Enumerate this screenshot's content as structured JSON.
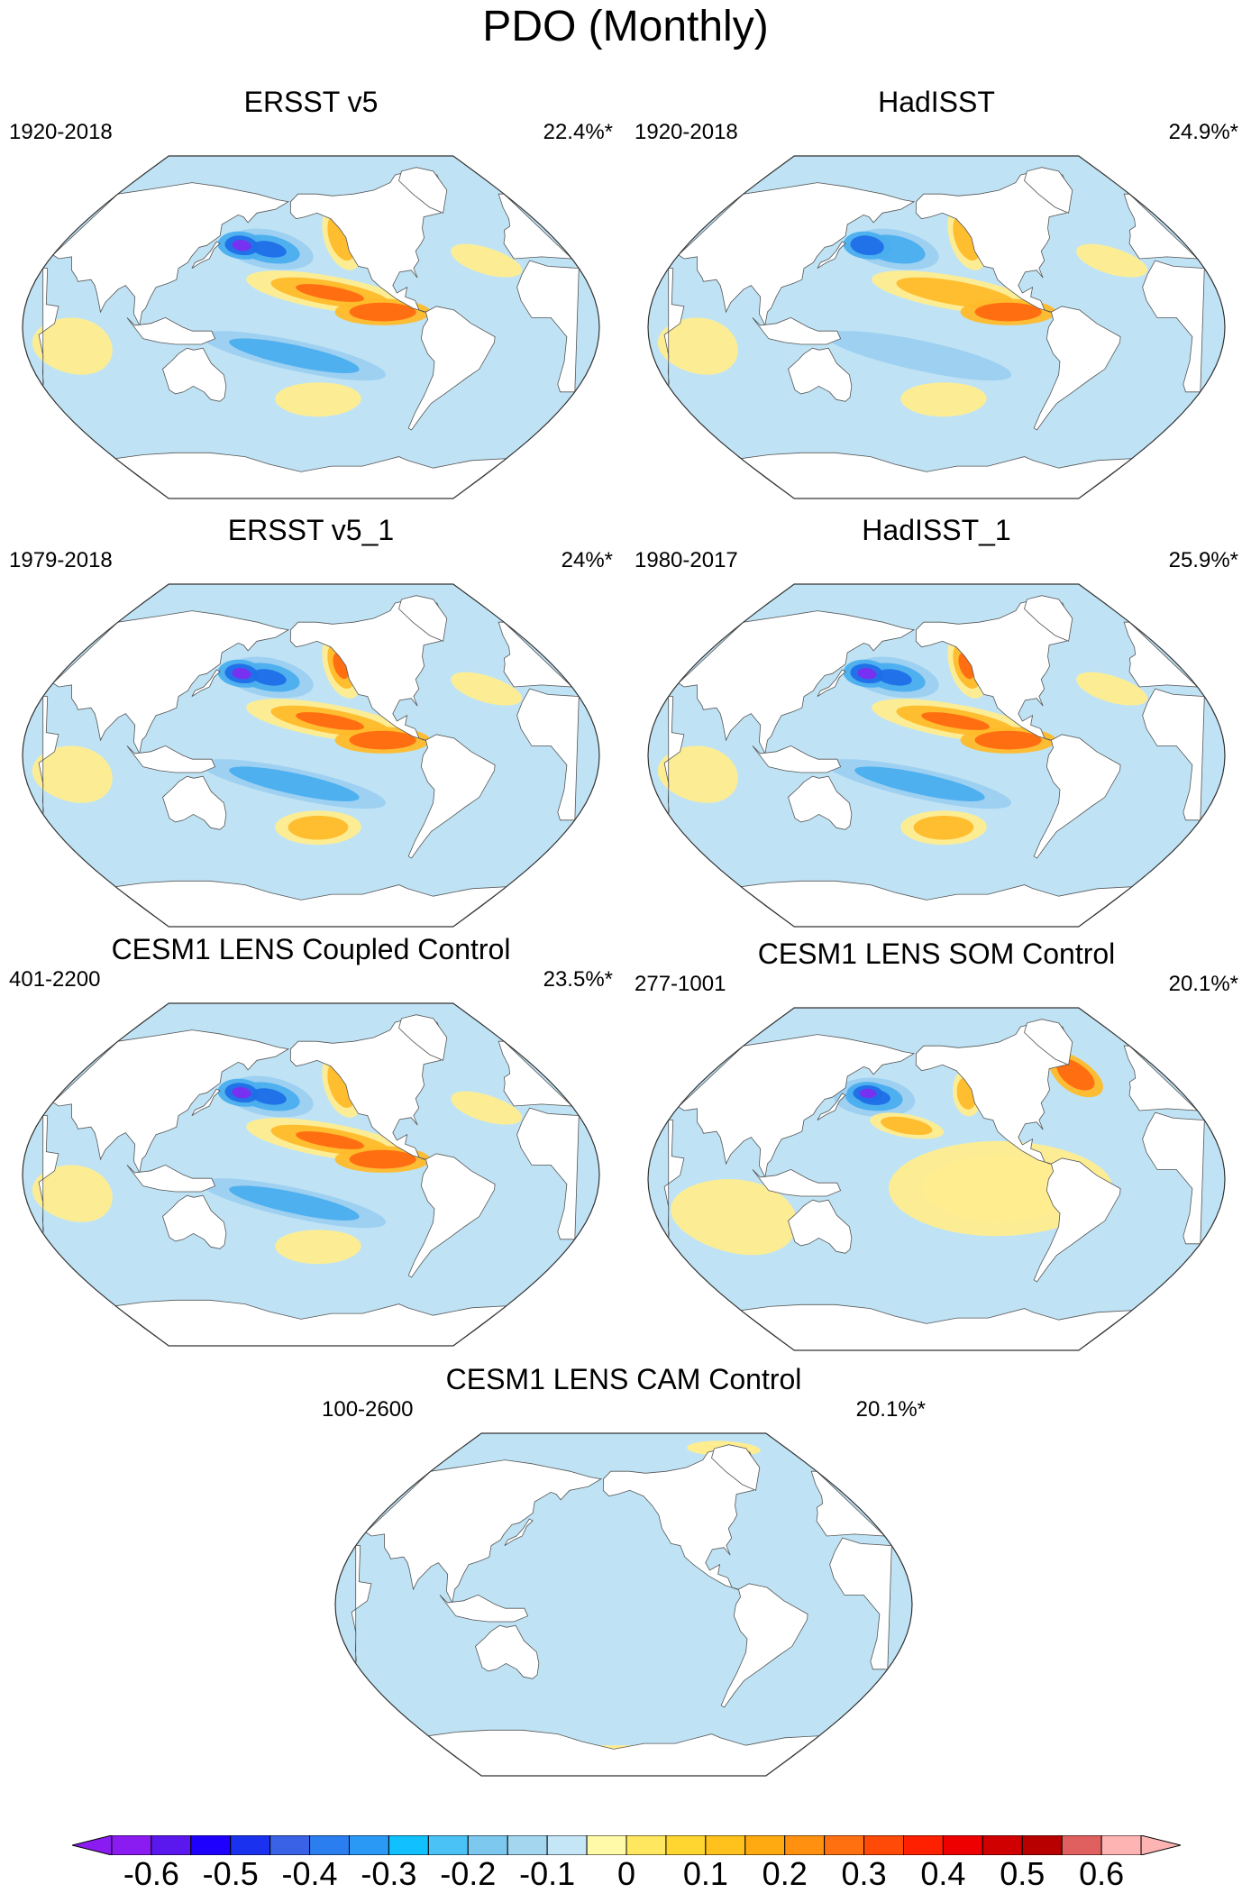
{
  "title": "PDO (Monthly)",
  "palette": {
    "ocean_neutral": "#bfe3f5",
    "land": "#ffffff",
    "coast": "#555555",
    "border": "#333333",
    "neg_weak": "#9ccff0",
    "neg_mid": "#4aaeee",
    "neg_strong": "#1f6ee8",
    "neg_max": "#7b2ef0",
    "pos_weak": "#ffed8f",
    "pos_mid": "#ffba2a",
    "pos_strong": "#ff6a10",
    "pos_max": "#e00000"
  },
  "panels": [
    {
      "title": "ERSST v5",
      "period": "1920-2018",
      "percent": "22.4%*",
      "strength": 0.9,
      "som": false,
      "flat": false
    },
    {
      "title": "HadISST",
      "period": "1920-2018",
      "percent": "24.9%*",
      "strength": 0.85,
      "som": false,
      "flat": false
    },
    {
      "title": "ERSST v5_1",
      "period": "1979-2018",
      "percent": "24%*",
      "strength": 1.0,
      "som": false,
      "flat": false
    },
    {
      "title": "HadISST_1",
      "period": "1980-2017",
      "percent": "25.9%*",
      "strength": 1.0,
      "som": false,
      "flat": false
    },
    {
      "title": "CESM1 LENS Coupled Control",
      "period": "401-2200",
      "percent": "23.5%*",
      "strength": 0.9,
      "som": false,
      "flat": false
    },
    {
      "title": "CESM1 LENS SOM Control",
      "period": "277-1001",
      "percent": "20.1%*",
      "strength": 0.9,
      "som": true,
      "flat": false
    },
    {
      "title": "CESM1 LENS CAM Control",
      "period": "100-2600",
      "percent": "20.1%*",
      "strength": 0.0,
      "som": false,
      "flat": true
    }
  ],
  "colorbar": {
    "colors": [
      "#8a1cf2",
      "#5a18ee",
      "#1e00ff",
      "#1a32f0",
      "#3a62e6",
      "#2a7ef0",
      "#2a98f5",
      "#10c0ff",
      "#4ac2f5",
      "#7cc8ee",
      "#a4d6f0",
      "#c4e6f6",
      "#fffaa8",
      "#ffe860",
      "#ffd630",
      "#ffc21c",
      "#ffaa10",
      "#ff9010",
      "#ff7010",
      "#ff4a08",
      "#ff2000",
      "#ee0000",
      "#d00000",
      "#b80000",
      "#e06060",
      "#ffb4b4"
    ],
    "labels": [
      "-0.6",
      "-0.5",
      "-0.4",
      "-0.3",
      "-0.2",
      "-0.1",
      "0",
      "0.1",
      "0.2",
      "0.3",
      "0.4",
      "0.5",
      "0.6"
    ]
  }
}
